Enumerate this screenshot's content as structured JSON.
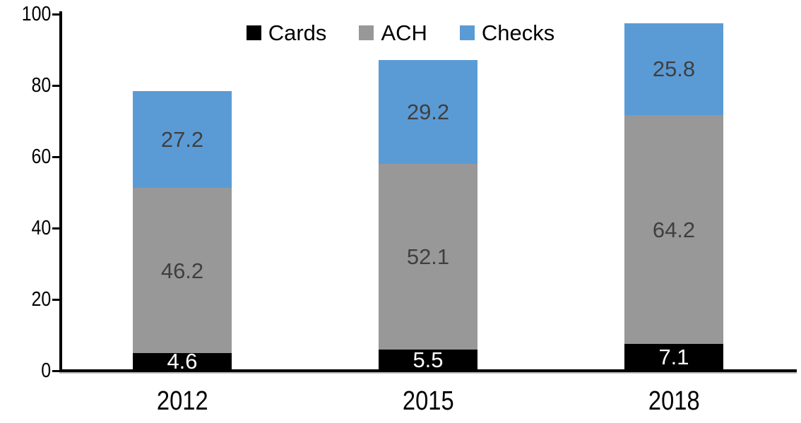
{
  "chart_data": {
    "type": "bar",
    "stacked": true,
    "categories": [
      "2012",
      "2015",
      "2018"
    ],
    "series": [
      {
        "name": "Cards",
        "color": "#000000",
        "label_color": "#ffffff",
        "values": [
          4.6,
          5.5,
          7.1
        ]
      },
      {
        "name": "ACH",
        "color": "#989898",
        "label_color": "#3f3f3f",
        "values": [
          46.2,
          52.1,
          64.2
        ]
      },
      {
        "name": "Checks",
        "color": "#5b9bd5",
        "label_color": "#3f3f3f",
        "values": [
          27.2,
          29.2,
          25.8
        ]
      }
    ],
    "title": "",
    "xlabel": "",
    "ylabel": "",
    "ylim": [
      0,
      100
    ],
    "yticks": [
      0,
      20,
      40,
      60,
      80,
      100
    ],
    "grid": false,
    "legend_position": "top-center",
    "axis_color": "#000000",
    "background_color": "#ffffff"
  }
}
